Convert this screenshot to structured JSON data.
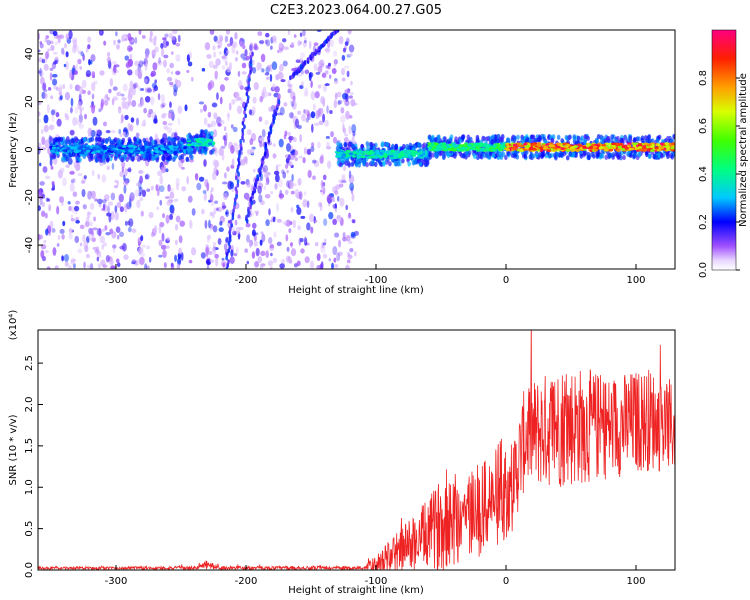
{
  "title": "C2E3.2023.064.00.27.G05",
  "chart_data": [
    {
      "type": "heatmap",
      "xlabel": "Height of straight line (km)",
      "ylabel": "Frequency (Hz)",
      "xlim": [
        -360,
        130
      ],
      "ylim": [
        -50,
        50
      ],
      "xticks": [
        "-300",
        "-200",
        "-100",
        "0",
        "100"
      ],
      "xtick_values": [
        -300,
        -200,
        -100,
        0,
        100
      ],
      "yticks": [
        "-40",
        "-20",
        "0",
        "20",
        "40"
      ],
      "ytick_values": [
        -40,
        -20,
        0,
        20,
        40
      ],
      "colorbar": {
        "label": "Normalized spectral amplitude",
        "range": [
          0,
          1
        ],
        "ticks": [
          "0.0",
          "0.2",
          "0.4",
          "0.6",
          "0.8"
        ],
        "tick_values": [
          0,
          0.2,
          0.4,
          0.6,
          0.8
        ],
        "colors": [
          "#ffffff",
          "#c896ff",
          "#8a00ff",
          "#0000ff",
          "#00ffff",
          "#00ff00",
          "#ffff00",
          "#ff8000",
          "#ff0000",
          "#ff0080"
        ]
      },
      "features": [
        {
          "kind": "band",
          "x": [
            -350,
            -240
          ],
          "y_center": 0,
          "amplitude": 0.3
        },
        {
          "kind": "band",
          "x": [
            -245,
            -225
          ],
          "y_center": 3,
          "amplitude": 0.4
        },
        {
          "kind": "band",
          "x": [
            -130,
            -60
          ],
          "y_center": -2,
          "amplitude": 0.4
        },
        {
          "kind": "band",
          "x": [
            -60,
            0
          ],
          "y_center": 1,
          "amplitude": 0.5
        },
        {
          "kind": "band",
          "x": [
            0,
            130
          ],
          "y_center": 1,
          "amplitude": 0.9
        },
        {
          "kind": "streak",
          "x": [
            -215,
            -195
          ],
          "y": [
            -50,
            40
          ],
          "amplitude": 0.2
        },
        {
          "kind": "streak",
          "x": [
            -200,
            -175
          ],
          "y": [
            -30,
            20
          ],
          "amplitude": 0.2
        },
        {
          "kind": "streak",
          "x": [
            -165,
            -130
          ],
          "y": [
            30,
            50
          ],
          "amplitude": 0.2
        }
      ]
    },
    {
      "type": "line",
      "xlabel": "Height of straight line (km)",
      "ylabel": "SNR (10 * v/v)",
      "scale_label": "(x10⁴)",
      "xlim": [
        -360,
        130
      ],
      "ylim": [
        0,
        2.9
      ],
      "xticks": [
        "-300",
        "-200",
        "-100",
        "0",
        "100"
      ],
      "xtick_values": [
        -300,
        -200,
        -100,
        0,
        100
      ],
      "yticks": [
        "0.0",
        "0.5",
        "1.0",
        "1.5",
        "2.0",
        "2.5"
      ],
      "ytick_values": [
        0,
        0.5,
        1.0,
        1.5,
        2.0,
        2.5
      ],
      "color": "#ee2222",
      "envelope": [
        {
          "x": -360,
          "base": 0.02,
          "amp": 0.02
        },
        {
          "x": -240,
          "base": 0.02,
          "amp": 0.03
        },
        {
          "x": -230,
          "base": 0.05,
          "amp": 0.08
        },
        {
          "x": -220,
          "base": 0.02,
          "amp": 0.03
        },
        {
          "x": -110,
          "base": 0.02,
          "amp": 0.03
        },
        {
          "x": -100,
          "base": 0.05,
          "amp": 0.15
        },
        {
          "x": -80,
          "base": 0.2,
          "amp": 0.4
        },
        {
          "x": -60,
          "base": 0.35,
          "amp": 0.6
        },
        {
          "x": -45,
          "base": 0.5,
          "amp": 0.9
        },
        {
          "x": -20,
          "base": 0.6,
          "amp": 0.8
        },
        {
          "x": -5,
          "base": 0.8,
          "amp": 0.9
        },
        {
          "x": 5,
          "base": 0.9,
          "amp": 0.8
        },
        {
          "x": 15,
          "base": 1.5,
          "amp": 0.9
        },
        {
          "x": 45,
          "base": 1.6,
          "amp": 1.1
        },
        {
          "x": 80,
          "base": 1.6,
          "amp": 0.9
        },
        {
          "x": 110,
          "base": 1.7,
          "amp": 0.9
        },
        {
          "x": 130,
          "base": 1.6,
          "amp": 0.8
        }
      ]
    }
  ]
}
